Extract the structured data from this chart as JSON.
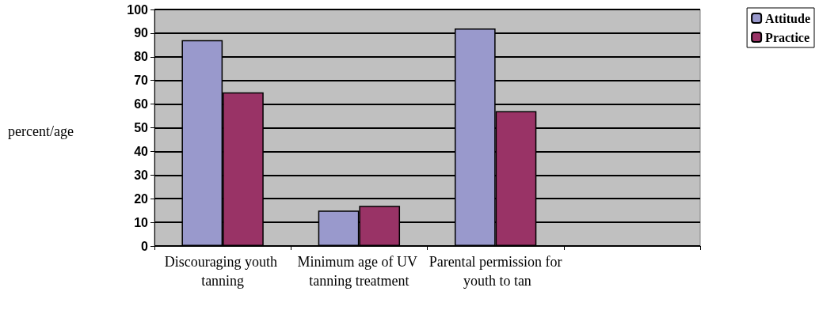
{
  "chart_data": {
    "type": "bar",
    "ylabel": "percent/age",
    "categories": [
      "Discouraging youth tanning",
      "Minimum age of UV tanning treatment",
      "Parental permission for youth to tan",
      null
    ],
    "series": [
      {
        "name": "Attitude",
        "color": "#9999cc",
        "values": [
          87,
          15,
          92,
          null
        ]
      },
      {
        "name": "Practice",
        "color": "#993366",
        "values": [
          65,
          17,
          57,
          null
        ]
      }
    ],
    "ylim": [
      0,
      100
    ],
    "yticks": [
      0,
      10,
      20,
      30,
      40,
      50,
      60,
      70,
      80,
      90,
      100
    ],
    "grid": "y",
    "legend": "top right"
  }
}
